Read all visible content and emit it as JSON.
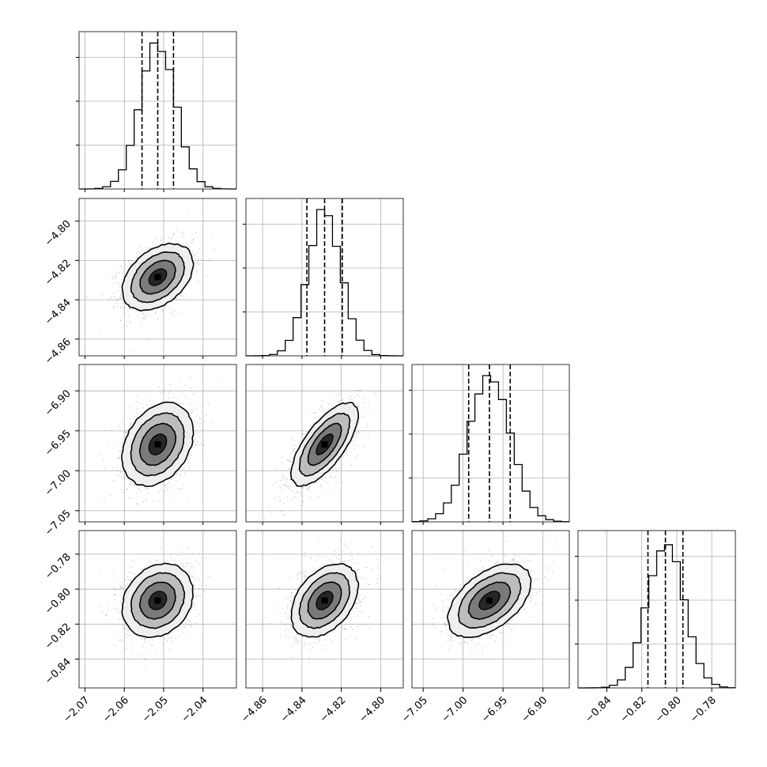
{
  "chart_data": {
    "type": "corner",
    "grid": true,
    "parameters": [
      {
        "id": "p0",
        "mean": -2.0515,
        "sd": 0.0045,
        "xlim": [
          -2.0715,
          -2.0315
        ],
        "ticks": [
          {
            "v": -2.07,
            "label": "−2.07"
          },
          {
            "v": -2.06,
            "label": "−2.06"
          },
          {
            "v": -2.05,
            "label": "−2.05"
          },
          {
            "v": -2.04,
            "label": "−2.04"
          }
        ],
        "quantiles": [
          -2.0555,
          -2.0515,
          -2.0475
        ]
      },
      {
        "id": "p1",
        "mean": -4.8285,
        "sd": 0.0085,
        "xlim": [
          -4.8685,
          -4.7885
        ],
        "ticks": [
          {
            "v": -4.86,
            "label": "−4.86"
          },
          {
            "v": -4.84,
            "label": "−4.84"
          },
          {
            "v": -4.82,
            "label": "−4.82"
          },
          {
            "v": -4.8,
            "label": "−4.80"
          }
        ],
        "quantiles": [
          -4.8375,
          -4.8285,
          -4.8195
        ]
      },
      {
        "id": "p2",
        "mean": -6.967,
        "sd": 0.026,
        "xlim": [
          -7.064,
          -6.867
        ],
        "ticks": [
          {
            "v": -7.05,
            "label": "−7.05"
          },
          {
            "v": -7.0,
            "label": "−7.00"
          },
          {
            "v": -6.95,
            "label": "−6.95"
          },
          {
            "v": -6.9,
            "label": "−6.90"
          }
        ],
        "quantiles": [
          -6.993,
          -6.967,
          -6.941
        ]
      },
      {
        "id": "p3",
        "mean": -0.8065,
        "sd": 0.0105,
        "xlim": [
          -0.8565,
          -0.7665
        ],
        "ticks": [
          {
            "v": -0.84,
            "label": "−0.84"
          },
          {
            "v": -0.82,
            "label": "−0.82"
          },
          {
            "v": -0.8,
            "label": "−0.80"
          },
          {
            "v": -0.78,
            "label": "−0.78"
          }
        ],
        "quantiles": [
          -0.8165,
          -0.8065,
          -0.7965
        ]
      }
    ],
    "correlations": [
      [
        0,
        1,
        0.4
      ],
      [
        0,
        2,
        0.3
      ],
      [
        1,
        2,
        0.7
      ],
      [
        0,
        3,
        0.2
      ],
      [
        1,
        3,
        0.4
      ],
      [
        2,
        3,
        0.5
      ]
    ],
    "contour_levels_sigma": [
      0.5,
      1.0,
      1.5,
      2.0
    ],
    "colors": {
      "hist": "#000000",
      "scatter": "#808080",
      "grid": "#b0b0b0"
    }
  }
}
